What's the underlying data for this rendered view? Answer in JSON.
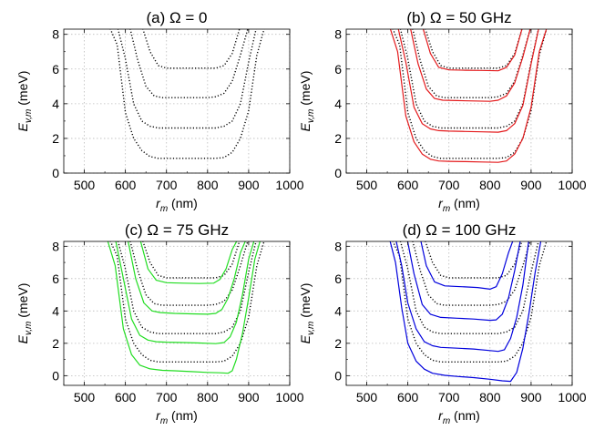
{
  "chart_data": [
    {
      "type": "line",
      "title": "(a) Ω = 0",
      "xlabel": "r_m (nm)",
      "ylabel": "E_{v,m} (meV)",
      "xlim": [
        450,
        1000
      ],
      "ylim": [
        0,
        8.3
      ],
      "xticks": [
        500,
        600,
        700,
        800,
        900,
        1000
      ],
      "yticks": [
        0,
        2,
        4,
        6,
        8
      ],
      "grid": true,
      "series": [
        {
          "style": "dotted",
          "color": "#000000",
          "x": [
            560,
            580,
            600,
            620,
            640,
            660,
            680,
            700,
            720,
            740,
            760,
            780,
            800,
            820,
            840,
            860,
            880,
            900,
            920,
            940
          ],
          "y": [
            8.5,
            7.4,
            3.5,
            2.0,
            1.3,
            0.95,
            0.85,
            0.85,
            0.85,
            0.85,
            0.85,
            0.85,
            0.85,
            0.85,
            0.9,
            1.2,
            2.0,
            3.6,
            6.8,
            8.5
          ]
        },
        {
          "style": "dotted",
          "color": "#000000",
          "x": [
            580,
            600,
            620,
            640,
            660,
            680,
            700,
            720,
            760,
            800,
            820,
            840,
            860,
            880,
            900,
            920
          ],
          "y": [
            8.5,
            6.6,
            4.0,
            3.0,
            2.7,
            2.6,
            2.6,
            2.6,
            2.6,
            2.6,
            2.6,
            2.7,
            3.0,
            4.0,
            6.4,
            8.5
          ]
        },
        {
          "style": "dotted",
          "color": "#000000",
          "x": [
            610,
            630,
            650,
            670,
            690,
            720,
            760,
            800,
            820,
            840,
            860,
            880,
            900
          ],
          "y": [
            8.5,
            6.5,
            5.0,
            4.45,
            4.35,
            4.35,
            4.35,
            4.35,
            4.4,
            4.6,
            5.3,
            6.8,
            8.5
          ]
        },
        {
          "style": "dotted",
          "color": "#000000",
          "x": [
            640,
            660,
            680,
            700,
            740,
            780,
            820,
            840,
            860,
            880
          ],
          "y": [
            8.5,
            7.0,
            6.2,
            6.05,
            6.05,
            6.05,
            6.05,
            6.2,
            6.9,
            8.5
          ]
        }
      ]
    },
    {
      "type": "line",
      "title": "(b) Ω = 50 GHz",
      "xlabel": "r_m (nm)",
      "ylabel": "E_{v,m} (meV)",
      "xlim": [
        450,
        1000
      ],
      "ylim": [
        0,
        8.3
      ],
      "xticks": [
        500,
        600,
        700,
        800,
        900,
        1000
      ],
      "yticks": [
        0,
        2,
        4,
        6,
        8
      ],
      "grid": true,
      "series": [
        {
          "style": "dotted",
          "color": "#000000",
          "x": [
            560,
            580,
            600,
            620,
            640,
            660,
            680,
            700,
            720,
            740,
            760,
            780,
            800,
            820,
            840,
            860,
            880,
            900,
            920,
            940
          ],
          "y": [
            8.5,
            7.4,
            3.5,
            2.0,
            1.3,
            0.95,
            0.85,
            0.85,
            0.85,
            0.85,
            0.85,
            0.85,
            0.85,
            0.85,
            0.9,
            1.2,
            2.0,
            3.6,
            6.8,
            8.5
          ]
        },
        {
          "style": "dotted",
          "color": "#000000",
          "x": [
            580,
            600,
            620,
            640,
            660,
            680,
            700,
            720,
            760,
            800,
            820,
            840,
            860,
            880,
            900,
            920
          ],
          "y": [
            8.5,
            6.6,
            4.0,
            3.0,
            2.7,
            2.6,
            2.6,
            2.6,
            2.6,
            2.6,
            2.6,
            2.7,
            3.0,
            4.0,
            6.4,
            8.5
          ]
        },
        {
          "style": "dotted",
          "color": "#000000",
          "x": [
            610,
            630,
            650,
            670,
            690,
            720,
            760,
            800,
            820,
            840,
            860,
            880,
            900
          ],
          "y": [
            8.5,
            6.5,
            5.0,
            4.45,
            4.35,
            4.35,
            4.35,
            4.35,
            4.4,
            4.6,
            5.3,
            6.8,
            8.5
          ]
        },
        {
          "style": "dotted",
          "color": "#000000",
          "x": [
            640,
            660,
            680,
            700,
            740,
            780,
            820,
            840,
            860,
            880
          ],
          "y": [
            8.5,
            7.0,
            6.2,
            6.05,
            6.05,
            6.05,
            6.05,
            6.2,
            6.9,
            8.5
          ]
        },
        {
          "style": "solid",
          "color": "#e41a1c",
          "x": [
            555,
            575,
            595,
            615,
            635,
            655,
            675,
            700,
            740,
            780,
            820,
            840,
            860,
            880,
            900,
            920,
            940
          ],
          "y": [
            8.5,
            7.0,
            3.3,
            1.8,
            1.1,
            0.8,
            0.7,
            0.68,
            0.66,
            0.64,
            0.62,
            0.7,
            1.1,
            2.0,
            3.8,
            7.0,
            8.5
          ]
        },
        {
          "style": "solid",
          "color": "#e41a1c",
          "x": [
            575,
            595,
            615,
            635,
            655,
            675,
            700,
            740,
            780,
            820,
            840,
            860,
            880,
            900,
            920
          ],
          "y": [
            8.5,
            6.4,
            3.8,
            2.85,
            2.55,
            2.45,
            2.42,
            2.4,
            2.38,
            2.36,
            2.45,
            2.85,
            3.9,
            6.3,
            8.5
          ]
        },
        {
          "style": "solid",
          "color": "#e41a1c",
          "x": [
            605,
            625,
            645,
            665,
            685,
            720,
            760,
            800,
            820,
            840,
            860,
            880,
            900
          ],
          "y": [
            8.5,
            6.3,
            4.85,
            4.3,
            4.2,
            4.18,
            4.16,
            4.14,
            4.2,
            4.45,
            5.2,
            6.7,
            8.5
          ]
        },
        {
          "style": "solid",
          "color": "#e41a1c",
          "x": [
            635,
            655,
            675,
            700,
            740,
            780,
            820,
            840,
            860,
            880
          ],
          "y": [
            8.5,
            6.9,
            6.1,
            5.95,
            5.93,
            5.92,
            5.9,
            6.1,
            6.8,
            8.5
          ]
        }
      ]
    },
    {
      "type": "line",
      "title": "(c) Ω = 75 GHz",
      "xlabel": "r_m (nm)",
      "ylabel": "E_{v,m} (meV)",
      "xlim": [
        450,
        1000
      ],
      "ylim": [
        -0.6,
        8.3
      ],
      "xticks": [
        500,
        600,
        700,
        800,
        900,
        1000
      ],
      "yticks": [
        0,
        2,
        4,
        6,
        8
      ],
      "grid": true,
      "series": [
        {
          "style": "dotted",
          "color": "#000000",
          "x": [
            560,
            580,
            600,
            620,
            640,
            660,
            680,
            700,
            720,
            740,
            760,
            780,
            800,
            820,
            840,
            860,
            880,
            900,
            920,
            940
          ],
          "y": [
            8.5,
            7.4,
            3.5,
            2.0,
            1.3,
            0.95,
            0.85,
            0.85,
            0.85,
            0.85,
            0.85,
            0.85,
            0.85,
            0.85,
            0.9,
            1.2,
            2.0,
            3.6,
            6.8,
            8.5
          ]
        },
        {
          "style": "dotted",
          "color": "#000000",
          "x": [
            580,
            600,
            620,
            640,
            660,
            680,
            700,
            720,
            760,
            800,
            820,
            840,
            860,
            880,
            900,
            920
          ],
          "y": [
            8.5,
            6.6,
            4.0,
            3.0,
            2.7,
            2.6,
            2.6,
            2.6,
            2.6,
            2.6,
            2.6,
            2.7,
            3.0,
            4.0,
            6.4,
            8.5
          ]
        },
        {
          "style": "dotted",
          "color": "#000000",
          "x": [
            610,
            630,
            650,
            670,
            690,
            720,
            760,
            800,
            820,
            840,
            860,
            880,
            900
          ],
          "y": [
            8.5,
            6.5,
            5.0,
            4.45,
            4.35,
            4.35,
            4.35,
            4.35,
            4.4,
            4.6,
            5.3,
            6.8,
            8.5
          ]
        },
        {
          "style": "dotted",
          "color": "#000000",
          "x": [
            640,
            660,
            680,
            700,
            740,
            780,
            820,
            840,
            860,
            880
          ],
          "y": [
            8.5,
            7.0,
            6.2,
            6.05,
            6.05,
            6.05,
            6.05,
            6.2,
            6.9,
            8.5
          ]
        },
        {
          "style": "solid",
          "color": "#22dd22",
          "x": [
            555,
            575,
            595,
            615,
            635,
            660,
            690,
            720,
            760,
            800,
            830,
            850,
            860,
            870,
            885,
            900,
            915,
            930,
            940
          ],
          "y": [
            8.5,
            6.8,
            2.9,
            1.3,
            0.65,
            0.42,
            0.33,
            0.3,
            0.25,
            0.2,
            0.18,
            0.15,
            0.3,
            1.0,
            2.6,
            4.8,
            7.2,
            8.5,
            8.5
          ]
        },
        {
          "style": "solid",
          "color": "#22dd22",
          "x": [
            575,
            595,
            615,
            635,
            655,
            675,
            700,
            740,
            780,
            820,
            840,
            855,
            870,
            885,
            900,
            915
          ],
          "y": [
            8.5,
            6.0,
            3.5,
            2.5,
            2.2,
            2.1,
            2.07,
            2.05,
            2.02,
            1.98,
            2.05,
            2.4,
            3.3,
            5.0,
            7.2,
            8.5
          ]
        },
        {
          "style": "solid",
          "color": "#22dd22",
          "x": [
            605,
            625,
            645,
            665,
            685,
            720,
            760,
            800,
            820,
            835,
            850,
            865,
            880,
            895
          ],
          "y": [
            8.5,
            6.0,
            4.5,
            4.0,
            3.9,
            3.85,
            3.82,
            3.8,
            3.85,
            4.1,
            4.8,
            6.0,
            7.6,
            8.5
          ]
        },
        {
          "style": "solid",
          "color": "#22dd22",
          "x": [
            635,
            655,
            675,
            700,
            740,
            780,
            815,
            830,
            845,
            860,
            875
          ],
          "y": [
            8.5,
            6.6,
            5.9,
            5.75,
            5.72,
            5.7,
            5.72,
            5.95,
            6.6,
            7.8,
            8.5
          ]
        }
      ]
    },
    {
      "type": "line",
      "title": "(d) Ω = 100 GHz",
      "xlabel": "r_m (nm)",
      "ylabel": "E_{v,m} (meV)",
      "xlim": [
        450,
        1000
      ],
      "ylim": [
        -0.6,
        8.3
      ],
      "xticks": [
        500,
        600,
        700,
        800,
        900,
        1000
      ],
      "yticks": [
        0,
        2,
        4,
        6,
        8
      ],
      "grid": true,
      "series": [
        {
          "style": "dotted",
          "color": "#000000",
          "x": [
            560,
            580,
            600,
            620,
            640,
            660,
            680,
            700,
            720,
            740,
            760,
            780,
            800,
            820,
            840,
            860,
            880,
            900,
            920,
            940
          ],
          "y": [
            8.5,
            7.4,
            3.5,
            2.0,
            1.3,
            0.95,
            0.85,
            0.85,
            0.85,
            0.85,
            0.85,
            0.85,
            0.85,
            0.85,
            0.9,
            1.2,
            2.0,
            3.6,
            6.8,
            8.5
          ]
        },
        {
          "style": "dotted",
          "color": "#000000",
          "x": [
            580,
            600,
            620,
            640,
            660,
            680,
            700,
            720,
            760,
            800,
            820,
            840,
            860,
            880,
            900,
            920
          ],
          "y": [
            8.5,
            6.6,
            4.0,
            3.0,
            2.7,
            2.6,
            2.6,
            2.6,
            2.6,
            2.6,
            2.6,
            2.7,
            3.0,
            4.0,
            6.4,
            8.5
          ]
        },
        {
          "style": "dotted",
          "color": "#000000",
          "x": [
            610,
            630,
            650,
            670,
            690,
            720,
            760,
            800,
            820,
            840,
            860,
            880,
            900
          ],
          "y": [
            8.5,
            6.5,
            5.0,
            4.45,
            4.35,
            4.35,
            4.35,
            4.35,
            4.4,
            4.6,
            5.3,
            6.8,
            8.5
          ]
        },
        {
          "style": "dotted",
          "color": "#000000",
          "x": [
            640,
            660,
            680,
            700,
            740,
            780,
            820,
            840,
            860,
            880
          ],
          "y": [
            8.5,
            7.0,
            6.2,
            6.05,
            6.05,
            6.05,
            6.05,
            6.2,
            6.9,
            8.5
          ]
        },
        {
          "style": "solid",
          "color": "#0000dd",
          "x": [
            555,
            570,
            585,
            600,
            620,
            640,
            660,
            690,
            720,
            760,
            800,
            830,
            850,
            865,
            880,
            895,
            910,
            925,
            940
          ],
          "y": [
            8.5,
            7.0,
            4.2,
            2.0,
            0.9,
            0.4,
            0.15,
            0.02,
            -0.05,
            -0.12,
            -0.22,
            -0.32,
            -0.35,
            0.2,
            1.7,
            3.9,
            6.4,
            8.5,
            8.5
          ]
        },
        {
          "style": "solid",
          "color": "#0000dd",
          "x": [
            570,
            585,
            600,
            620,
            640,
            660,
            680,
            720,
            760,
            800,
            820,
            835,
            850,
            865,
            880,
            895
          ],
          "y": [
            8.5,
            6.8,
            4.5,
            2.9,
            2.1,
            1.85,
            1.75,
            1.7,
            1.65,
            1.55,
            1.5,
            1.6,
            2.3,
            3.6,
            5.6,
            8.5
          ]
        },
        {
          "style": "solid",
          "color": "#0000dd",
          "x": [
            598,
            615,
            635,
            655,
            680,
            720,
            760,
            800,
            815,
            830,
            845,
            860,
            875
          ],
          "y": [
            8.5,
            6.3,
            4.4,
            3.8,
            3.6,
            3.55,
            3.5,
            3.42,
            3.45,
            3.8,
            4.8,
            6.5,
            8.5
          ]
        },
        {
          "style": "solid",
          "color": "#0000dd",
          "x": [
            630,
            645,
            665,
            690,
            730,
            770,
            800,
            815,
            830,
            845,
            858
          ],
          "y": [
            8.5,
            6.8,
            5.8,
            5.55,
            5.5,
            5.45,
            5.35,
            5.5,
            6.3,
            7.6,
            8.5
          ]
        }
      ]
    }
  ]
}
